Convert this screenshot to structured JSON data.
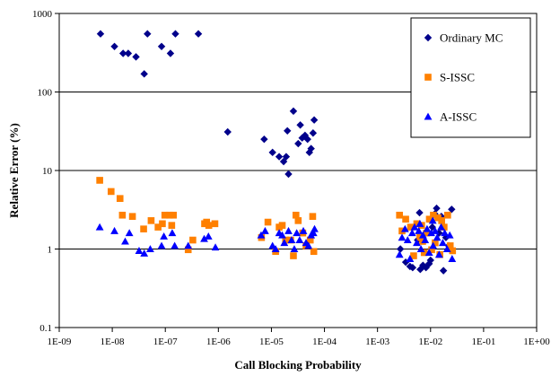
{
  "chart_data": {
    "type": "scatter",
    "title": "",
    "xlabel": "Call Blocking Probability",
    "ylabel": "Relative Error (%)",
    "x_scale": "log",
    "y_scale": "log",
    "xlim": [
      1e-09,
      1
    ],
    "ylim": [
      0.1,
      1000
    ],
    "x_tick_values": [
      1e-09,
      1e-08,
      1e-07,
      1e-06,
      1e-05,
      0.0001,
      0.001,
      0.01,
      0.1,
      1
    ],
    "x_tick_labels": [
      "1E-09",
      "1E-08",
      "1E-07",
      "1E-06",
      "1E-05",
      "1E-04",
      "1E-03",
      "1E-02",
      "1E-01",
      "1E+00"
    ],
    "y_tick_values": [
      0.1,
      1,
      10,
      100,
      1000
    ],
    "y_tick_labels": [
      "0.1",
      "1",
      "10",
      "100",
      "1000"
    ],
    "grid": "horizontal major gridlines",
    "legend_position": "top-right",
    "series": [
      {
        "name": "Ordinary MC",
        "color": "#00008b",
        "marker": "diamond",
        "points": [
          [
            6e-09,
            550
          ],
          [
            1.1e-08,
            380
          ],
          [
            1.6e-08,
            310
          ],
          [
            2e-08,
            310
          ],
          [
            2.8e-08,
            280
          ],
          [
            4e-08,
            170
          ],
          [
            4.6e-08,
            550
          ],
          [
            8.5e-08,
            380
          ],
          [
            1.25e-07,
            310
          ],
          [
            1.55e-07,
            550
          ],
          [
            4.2e-07,
            550
          ],
          [
            1.5e-06,
            31
          ],
          [
            7.3e-06,
            25
          ],
          [
            1.05e-05,
            17
          ],
          [
            1.4e-05,
            15
          ],
          [
            1.7e-05,
            13
          ],
          [
            1.9e-05,
            15
          ],
          [
            2.1e-05,
            9
          ],
          [
            2e-05,
            32
          ],
          [
            2.6e-05,
            57
          ],
          [
            3.2e-05,
            22
          ],
          [
            3.8e-05,
            26
          ],
          [
            4.3e-05,
            28
          ],
          [
            4.8e-05,
            25
          ],
          [
            5.2e-05,
            17
          ],
          [
            5.6e-05,
            19
          ],
          [
            6.1e-05,
            30
          ],
          [
            6.4e-05,
            44
          ],
          [
            3.5e-05,
            38
          ],
          [
            0.0027,
            1.0
          ],
          [
            0.0034,
            0.68
          ],
          [
            0.0041,
            0.6
          ],
          [
            0.0046,
            0.58
          ],
          [
            0.0057,
            1.3
          ],
          [
            0.0064,
            0.55
          ],
          [
            0.0072,
            0.62
          ],
          [
            0.0082,
            0.58
          ],
          [
            0.0094,
            0.65
          ],
          [
            0.0108,
            1.9
          ],
          [
            0.012,
            2.8
          ],
          [
            0.013,
            3.3
          ],
          [
            0.0145,
            1.6
          ],
          [
            0.016,
            2.6
          ],
          [
            0.0175,
            0.53
          ],
          [
            0.0195,
            1.4
          ],
          [
            0.022,
            1.1
          ],
          [
            0.025,
            3.2
          ],
          [
            0.0062,
            2.9
          ],
          [
            0.01,
            0.72
          ]
        ]
      },
      {
        "name": "S-ISSC",
        "color": "#ff8000",
        "marker": "square",
        "points": [
          [
            5.8e-09,
            7.5
          ],
          [
            9.5e-09,
            5.4
          ],
          [
            1.4e-08,
            4.4
          ],
          [
            1.55e-08,
            2.7
          ],
          [
            2.4e-08,
            2.6
          ],
          [
            3.9e-08,
            1.8
          ],
          [
            5.4e-08,
            2.3
          ],
          [
            7.3e-08,
            1.9
          ],
          [
            8.8e-08,
            2.1
          ],
          [
            9.8e-08,
            2.7
          ],
          [
            1.2e-07,
            2.7
          ],
          [
            1.32e-07,
            2.0
          ],
          [
            1.42e-07,
            2.7
          ],
          [
            2.7e-07,
            0.98
          ],
          [
            3.3e-07,
            1.3
          ],
          [
            5.5e-07,
            2.1
          ],
          [
            6e-07,
            2.2
          ],
          [
            6.6e-07,
            2.0
          ],
          [
            8.6e-07,
            2.1
          ],
          [
            6.5e-06,
            1.4
          ],
          [
            8.6e-06,
            2.2
          ],
          [
            1.2e-05,
            0.93
          ],
          [
            1.4e-05,
            1.9
          ],
          [
            1.6e-05,
            2.0
          ],
          [
            1.85e-05,
            1.3
          ],
          [
            2.3e-05,
            1.3
          ],
          [
            2.6e-05,
            0.82
          ],
          [
            2.9e-05,
            2.7
          ],
          [
            3.2e-05,
            2.3
          ],
          [
            3.9e-05,
            1.6
          ],
          [
            4.5e-05,
            1.1
          ],
          [
            5.4e-05,
            1.3
          ],
          [
            6e-05,
            2.6
          ],
          [
            6.3e-05,
            0.93
          ],
          [
            0.0026,
            2.7
          ],
          [
            0.0029,
            1.7
          ],
          [
            0.0034,
            2.4
          ],
          [
            0.0042,
            1.9
          ],
          [
            0.0048,
            0.82
          ],
          [
            0.0055,
            2.1
          ],
          [
            0.0063,
            1.4
          ],
          [
            0.0068,
            2.0
          ],
          [
            0.0076,
            0.9
          ],
          [
            0.0084,
            1.6
          ],
          [
            0.0095,
            2.4
          ],
          [
            0.0105,
            0.98
          ],
          [
            0.0113,
            2.7
          ],
          [
            0.0122,
            1.2
          ],
          [
            0.0138,
            2.5
          ],
          [
            0.015,
            0.85
          ],
          [
            0.0162,
            2.3
          ],
          [
            0.018,
            1.9
          ],
          [
            0.021,
            2.7
          ],
          [
            0.0235,
            1.1
          ],
          [
            0.026,
            0.95
          ],
          [
            0.0071,
            1.25
          ]
        ]
      },
      {
        "name": "A-ISSC",
        "color": "#0000ff",
        "marker": "triangle",
        "points": [
          [
            5.8e-09,
            1.9
          ],
          [
            1.1e-08,
            1.7
          ],
          [
            1.75e-08,
            1.25
          ],
          [
            2.1e-08,
            1.6
          ],
          [
            3.2e-08,
            0.95
          ],
          [
            4e-08,
            0.88
          ],
          [
            5.2e-08,
            1.0
          ],
          [
            8.5e-08,
            1.1
          ],
          [
            9.4e-08,
            1.45
          ],
          [
            1.35e-07,
            1.6
          ],
          [
            1.5e-07,
            1.1
          ],
          [
            2.7e-07,
            1.1
          ],
          [
            5.4e-07,
            1.35
          ],
          [
            6.5e-07,
            1.45
          ],
          [
            8.8e-07,
            1.05
          ],
          [
            6.4e-06,
            1.5
          ],
          [
            7.6e-06,
            1.7
          ],
          [
            1.05e-05,
            1.1
          ],
          [
            1.2e-05,
            1.0
          ],
          [
            1.4e-05,
            1.6
          ],
          [
            1.6e-05,
            1.5
          ],
          [
            1.75e-05,
            1.2
          ],
          [
            2.1e-05,
            1.7
          ],
          [
            2.4e-05,
            1.3
          ],
          [
            2.7e-05,
            1.0
          ],
          [
            3e-05,
            1.6
          ],
          [
            3.4e-05,
            1.3
          ],
          [
            4e-05,
            1.7
          ],
          [
            4.5e-05,
            1.2
          ],
          [
            5e-05,
            1.1
          ],
          [
            5.6e-05,
            1.5
          ],
          [
            6.2e-05,
            1.6
          ],
          [
            6.5e-05,
            1.8
          ],
          [
            0.0026,
            0.85
          ],
          [
            0.0029,
            1.4
          ],
          [
            0.0033,
            1.8
          ],
          [
            0.0037,
            1.3
          ],
          [
            0.0041,
            0.75
          ],
          [
            0.0045,
            1.6
          ],
          [
            0.005,
            1.9
          ],
          [
            0.0055,
            1.2
          ],
          [
            0.006,
            1.7
          ],
          [
            0.0066,
            1.0
          ],
          [
            0.0072,
            1.5
          ],
          [
            0.0079,
            1.3
          ],
          [
            0.0086,
            1.8
          ],
          [
            0.0094,
            0.9
          ],
          [
            0.0103,
            1.6
          ],
          [
            0.0112,
            1.1
          ],
          [
            0.0122,
            1.7
          ],
          [
            0.0133,
            1.4
          ],
          [
            0.0145,
            0.85
          ],
          [
            0.0158,
            1.9
          ],
          [
            0.017,
            1.2
          ],
          [
            0.0185,
            1.6
          ],
          [
            0.0205,
            1.0
          ],
          [
            0.023,
            1.5
          ],
          [
            0.0255,
            0.75
          ],
          [
            0.0063,
            2.1
          ],
          [
            0.011,
            2.3
          ]
        ]
      }
    ]
  }
}
